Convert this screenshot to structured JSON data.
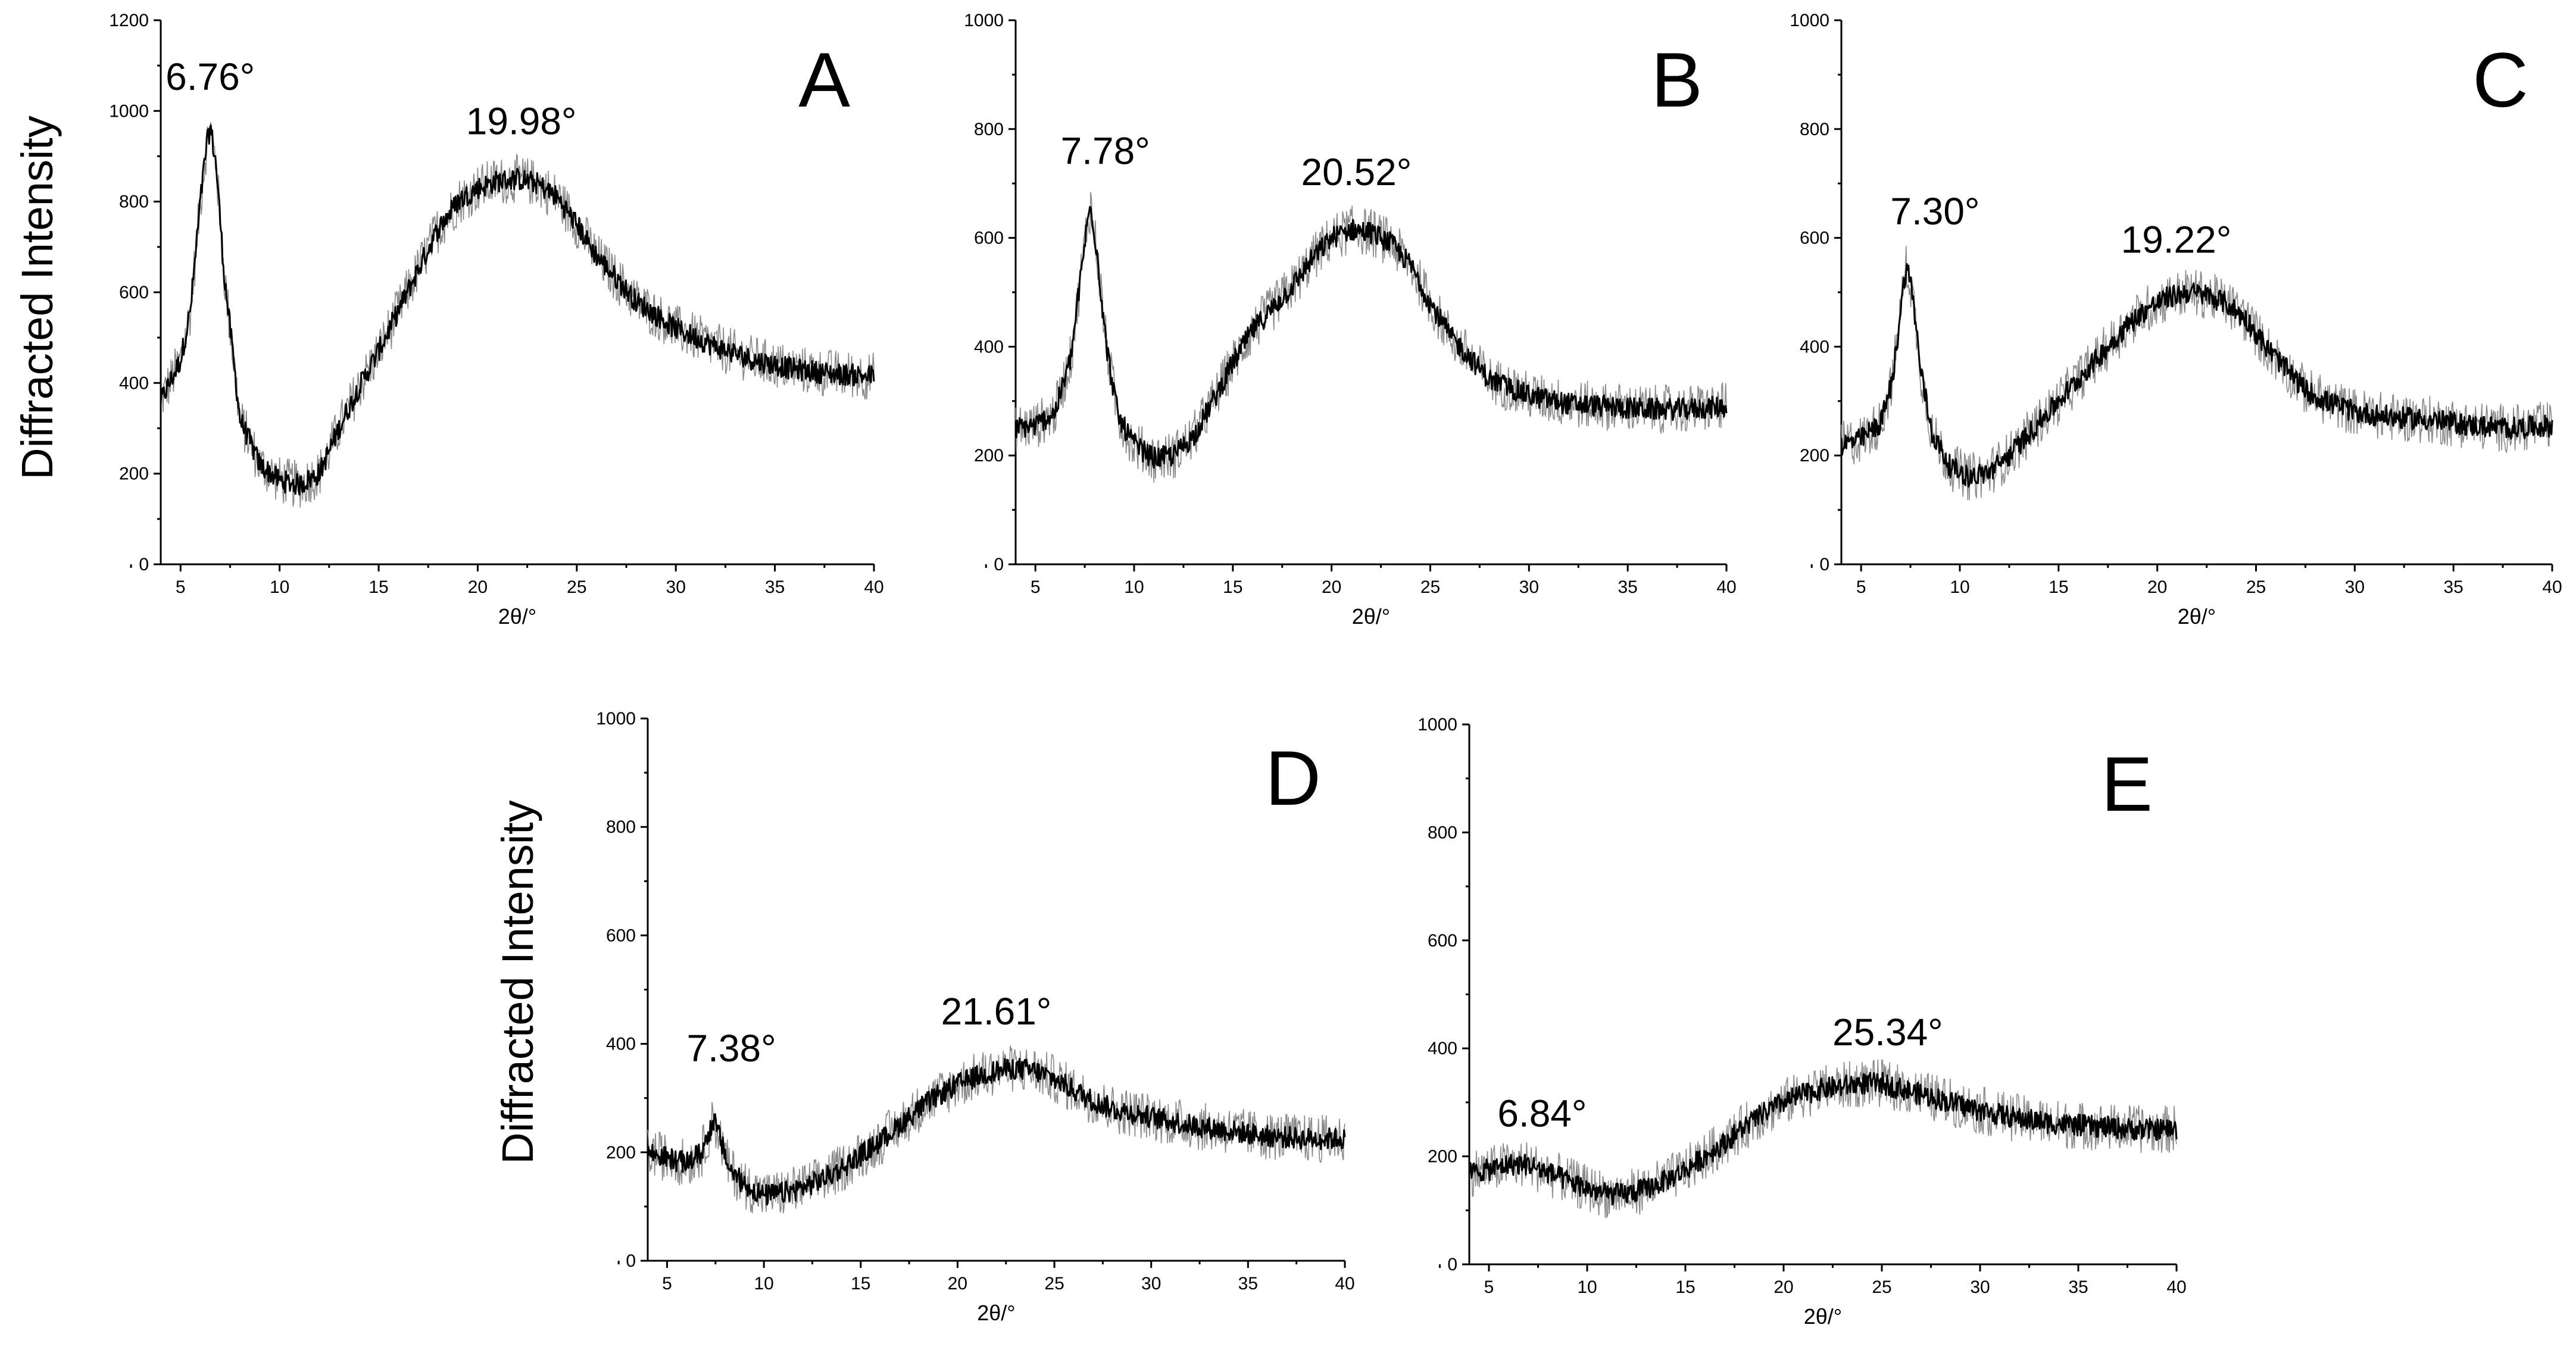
{
  "figure": {
    "ylabel": "Diffracted Intensity"
  },
  "chart_data": [
    {
      "type": "line",
      "panel": "A",
      "xlabel": "2θ/°",
      "ylabel": "",
      "xlim": [
        4,
        40
      ],
      "ylim": [
        0,
        1200
      ],
      "xticks": [
        "5",
        "10",
        "15",
        "20",
        "25",
        "30",
        "35",
        "40"
      ],
      "yticks": [
        "0",
        "200",
        "400",
        "600",
        "800",
        "1000",
        "1200"
      ],
      "annotations": [
        {
          "text": "6.76°",
          "x": 6.5,
          "y": 970
        },
        {
          "text": "19.98°",
          "x": 22.5,
          "y": 880
        }
      ],
      "series": [
        {
          "name": "A",
          "x": [
            4,
            5,
            5.5,
            6,
            6.3,
            6.5,
            6.8,
            7.2,
            8,
            9,
            10,
            11,
            12,
            13,
            14,
            15,
            16,
            17,
            18,
            19,
            20,
            21,
            22,
            23,
            24,
            25,
            26,
            27,
            28,
            30,
            32,
            34,
            36,
            38,
            40
          ],
          "y": [
            360,
            450,
            560,
            800,
            920,
            965,
            880,
            640,
            320,
            220,
            185,
            175,
            200,
            300,
            390,
            470,
            560,
            650,
            740,
            800,
            830,
            845,
            850,
            840,
            810,
            750,
            680,
            630,
            580,
            520,
            480,
            450,
            430,
            420,
            415
          ]
        }
      ]
    },
    {
      "type": "line",
      "panel": "B",
      "xlabel": "2θ/°",
      "ylabel": "",
      "xlim": [
        4,
        40
      ],
      "ylim": [
        0,
        1000
      ],
      "xticks": [
        "5",
        "10",
        "15",
        "20",
        "25",
        "30",
        "35",
        "40"
      ],
      "yticks": [
        "0",
        "200",
        "400",
        "600",
        "800",
        "1000"
      ],
      "annotations": [
        {
          "text": "7.78°",
          "x": 7.7,
          "y": 670
        },
        {
          "text": "20.52°",
          "x": 21.5,
          "y": 640
        }
      ],
      "series": [
        {
          "name": "B",
          "x": [
            4,
            5,
            6,
            6.8,
            7.2,
            7.6,
            7.8,
            8.1,
            8.6,
            9.2,
            10,
            11,
            12,
            13,
            14,
            15,
            16,
            17,
            18,
            19,
            20,
            21,
            22,
            23,
            24,
            25,
            26,
            27,
            28,
            30,
            32,
            34,
            36,
            38,
            40
          ],
          "y": [
            250,
            255,
            280,
            380,
            500,
            620,
            660,
            580,
            400,
            270,
            220,
            195,
            200,
            235,
            300,
            370,
            430,
            470,
            510,
            560,
            600,
            615,
            610,
            590,
            550,
            480,
            420,
            380,
            340,
            310,
            295,
            290,
            285,
            285,
            290
          ]
        }
      ]
    },
    {
      "type": "line",
      "panel": "C",
      "xlabel": "2θ/°",
      "ylabel": "",
      "xlim": [
        4,
        40
      ],
      "ylim": [
        0,
        1000
      ],
      "xticks": [
        "5",
        "10",
        "15",
        "20",
        "25",
        "30",
        "35",
        "40"
      ],
      "yticks": [
        "0",
        "200",
        "400",
        "600",
        "800",
        "1000"
      ],
      "annotations": [
        {
          "text": "7.30°",
          "x": 7.3,
          "y": 570
        },
        {
          "text": "19.22°",
          "x": 21.2,
          "y": 520
        }
      ],
      "series": [
        {
          "name": "C",
          "x": [
            4,
            5,
            6,
            6.6,
            7,
            7.3,
            7.6,
            8,
            8.6,
            9.5,
            10.5,
            11.5,
            12.5,
            13.5,
            14.5,
            15.5,
            16.5,
            17.5,
            18.5,
            19.5,
            20.5,
            21.5,
            22.5,
            23.5,
            24.5,
            25.5,
            26.5,
            27.5,
            28.5,
            30,
            32,
            34,
            36,
            38,
            40
          ],
          "y": [
            220,
            230,
            260,
            340,
            470,
            550,
            500,
            360,
            240,
            180,
            160,
            170,
            200,
            240,
            280,
            320,
            360,
            400,
            440,
            470,
            490,
            500,
            495,
            480,
            450,
            400,
            360,
            320,
            300,
            280,
            270,
            265,
            255,
            250,
            255
          ]
        }
      ]
    },
    {
      "type": "line",
      "panel": "D",
      "xlabel": "2θ/°",
      "ylabel": "",
      "xlim": [
        4,
        40
      ],
      "ylim": [
        0,
        1000
      ],
      "xticks": [
        "5",
        "10",
        "15",
        "20",
        "25",
        "30",
        "35",
        "40"
      ],
      "yticks": [
        "0",
        "200",
        "400",
        "600",
        "800",
        "1000"
      ],
      "annotations": [
        {
          "text": "7.38°",
          "x": 7.4,
          "y": 280
        },
        {
          "text": "21.61°",
          "x": 22.0,
          "y": 370
        }
      ],
      "series": [
        {
          "name": "D",
          "x": [
            4,
            5,
            6,
            6.8,
            7.2,
            7.4,
            7.7,
            8.2,
            9,
            10,
            11,
            12,
            13,
            14,
            15,
            16,
            17,
            18,
            19,
            20,
            21,
            22,
            23,
            24,
            25,
            26,
            27,
            28,
            30,
            32,
            34,
            36,
            38,
            40
          ],
          "y": [
            200,
            190,
            180,
            200,
            240,
            260,
            230,
            170,
            140,
            120,
            125,
            135,
            150,
            170,
            195,
            220,
            250,
            280,
            305,
            325,
            340,
            350,
            355,
            350,
            335,
            315,
            295,
            280,
            265,
            250,
            240,
            230,
            225,
            225
          ]
        }
      ]
    },
    {
      "type": "line",
      "panel": "E",
      "xlabel": "2θ/°",
      "ylabel": "",
      "xlim": [
        4,
        40
      ],
      "ylim": [
        0,
        1000
      ],
      "xticks": [
        "5",
        "10",
        "15",
        "20",
        "25",
        "30",
        "35",
        "40"
      ],
      "yticks": [
        "0",
        "200",
        "400",
        "600",
        "800",
        "1000"
      ],
      "annotations": [
        {
          "text": "6.84°",
          "x": 6.8,
          "y": 200
        },
        {
          "text": "25.34°",
          "x": 25.3,
          "y": 355
        }
      ],
      "series": [
        {
          "name": "E",
          "x": [
            4,
            5,
            6,
            7,
            8,
            9,
            10,
            11,
            12,
            13,
            14,
            15,
            16,
            17,
            18,
            19,
            20,
            21,
            22,
            23,
            24,
            25,
            26,
            27,
            28,
            29,
            30,
            32,
            34,
            36,
            38,
            40
          ],
          "y": [
            170,
            175,
            185,
            185,
            170,
            155,
            140,
            130,
            130,
            140,
            155,
            175,
            200,
            225,
            255,
            280,
            300,
            315,
            325,
            330,
            335,
            335,
            325,
            315,
            305,
            295,
            285,
            270,
            260,
            255,
            250,
            250
          ]
        }
      ]
    }
  ]
}
